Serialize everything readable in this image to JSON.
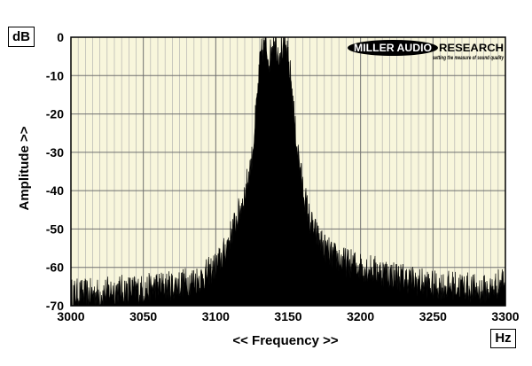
{
  "chart_data": {
    "type": "area",
    "title": "",
    "xlabel": "<< Frequency >>",
    "ylabel": "Amplitude >>",
    "x_unit": "Hz",
    "y_unit": "dB",
    "xlim": [
      3000,
      3300
    ],
    "ylim": [
      -70,
      0
    ],
    "x_ticks": [
      3000,
      3050,
      3100,
      3150,
      3200,
      3250,
      3300
    ],
    "y_ticks": [
      0,
      -10,
      -20,
      -30,
      -40,
      -50,
      -60,
      -70
    ],
    "grid": true,
    "background_color": "#f8f6dc",
    "fill_color": "#000000",
    "series": [
      {
        "x": [
          3000,
          3010,
          3020,
          3030,
          3040,
          3050,
          3060,
          3070,
          3080,
          3090,
          3100,
          3105,
          3110,
          3115,
          3120,
          3125,
          3128,
          3131,
          3134,
          3137,
          3140,
          3143,
          3146,
          3149,
          3152,
          3155,
          3160,
          3165,
          3170,
          3175,
          3180,
          3190,
          3200,
          3210,
          3220,
          3230,
          3240,
          3250,
          3260,
          3270,
          3280,
          3290,
          3300
        ],
        "values": [
          -68,
          -68,
          -68,
          -67,
          -67,
          -67,
          -66,
          -66,
          -65,
          -64,
          -61,
          -58,
          -53,
          -48,
          -42,
          -33,
          -20,
          -6,
          -3,
          -7,
          -1,
          -5,
          -4,
          -5,
          -12,
          -26,
          -40,
          -49,
          -53,
          -56,
          -58,
          -60,
          -61,
          -62,
          -63,
          -64,
          -65,
          -66,
          -66,
          -66,
          -67,
          -67,
          -64
        ]
      }
    ]
  },
  "brand": {
    "name_left": "MILLER AUDIO",
    "name_right": "RESEARCH",
    "tagline": "setting the measure of sound quality"
  }
}
